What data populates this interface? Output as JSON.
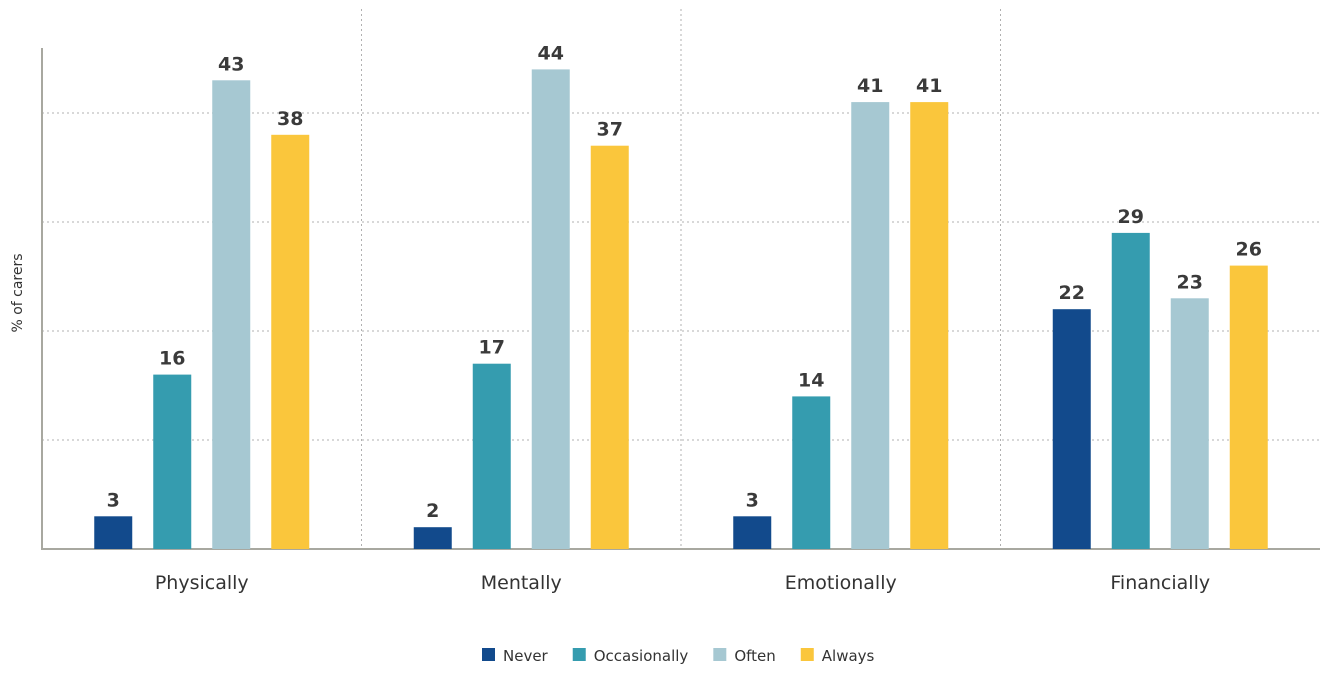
{
  "chart_data": {
    "type": "bar",
    "ylabel": "% of carers",
    "xlabel": "",
    "categories": [
      "Physically",
      "Mentally",
      "Emotionally",
      "Financially"
    ],
    "series": [
      {
        "name": "Never",
        "values": [
          3,
          2,
          3,
          22
        ]
      },
      {
        "name": "Occasionally",
        "values": [
          16,
          17,
          14,
          29
        ]
      },
      {
        "name": "Often",
        "values": [
          43,
          44,
          41,
          23
        ]
      },
      {
        "name": "Always",
        "values": [
          38,
          37,
          41,
          26
        ]
      }
    ],
    "ylim": [
      0,
      50
    ],
    "grid": true,
    "legend": "bottom",
    "colors": [
      "#124a8c",
      "#359caf",
      "#a6c8d2",
      "#fac63c"
    ]
  }
}
